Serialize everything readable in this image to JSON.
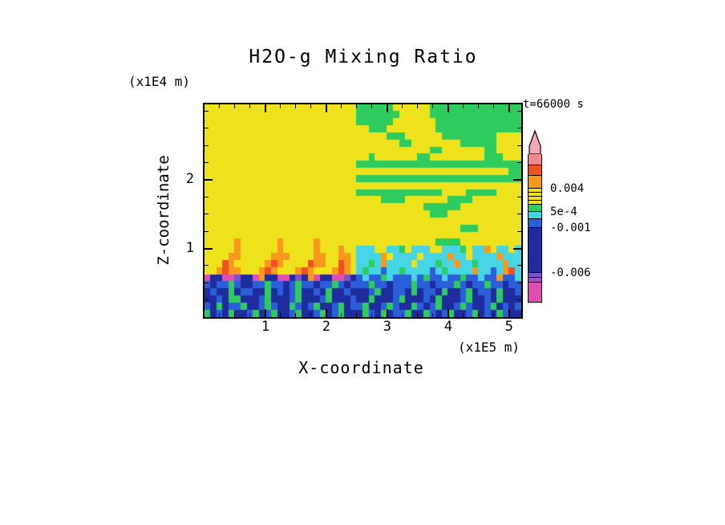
{
  "figure": {
    "title": "H2O-g Mixing Ratio",
    "time_label": "t=66000 s"
  },
  "axes": {
    "x": {
      "label": "X-coordinate",
      "unit": "(x1E5 m)",
      "min": 0,
      "max": 5.2,
      "major_ticks": [
        1,
        2,
        3,
        4,
        5
      ],
      "minor_step": 0.25
    },
    "z": {
      "label": "Z-coordinate",
      "unit": "(x1E4 m)",
      "min": 0,
      "max": 3.1,
      "major_ticks": [
        1,
        2
      ],
      "minor_step": 0.25
    }
  },
  "chart_data": {
    "type": "heatmap",
    "title": "H2O-g Mixing Ratio",
    "time_annotation": "t=66000 s",
    "x_axis": {
      "label": "X-coordinate",
      "units": "x1E5 m",
      "range": [
        0,
        5.2
      ],
      "ticks": [
        1,
        2,
        3,
        4,
        5
      ]
    },
    "z_axis": {
      "label": "Z-coordinate",
      "units": "x1E4 m",
      "range": [
        0,
        3.1
      ],
      "ticks": [
        1,
        2
      ]
    },
    "legend_position": "right",
    "grid_on": false,
    "field_description": "Water vapor mixing ratio anomaly: uniform yellow layer aloft on left, green turbulent patches upper right, cyan band mid-right, orange convective plumes rising from a dark navy/magenta inversion layer, blue/navy mixed boundary layer below",
    "palette": {
      "y": "#EDE21B",
      "g": "#2ECC5E",
      "c": "#45D5E5",
      "b": "#2B5FD9",
      "n": "#1F2C9E",
      "o": "#F8991D",
      "r": "#EF5123",
      "m": "#E04FAE",
      "p": "#7B52C7"
    },
    "grid": {
      "cols": 52,
      "rows": 30,
      "cells": [
        "yyyyyyyyyyyyyyyyyyyyyyyyyggggggyyyyyyggggggggggggggg",
        "yyyyyyyyyyyyyyyyyyyyyyyyygggggggyyyyyggggggggggggggg",
        "yyyyyyyyyyyyyyyyyyyyyyyyyggggggyyyyyyygggggggggggggg",
        "yyyyyyyyyyyyyyyyyyyyyyyyyyygggyyyyyyyygggggggggggggg",
        "yyyyyyyyyyyyyyyyyyyyyyyyyyyyyygggyyyyyygggggggggyyyy",
        "yyyyyyyyyyyyyyyyyyyyyyyyyyyyyyyyggyyyyyyyyggggggyyyy",
        "yyyyyyyyyyyyyyyyyyyyyyyyyyyyyyyyyyyyyggyyyyyyyggyyyy",
        "yyyyyyyyyyyyyyyyyyyyyyyyyyygyyyyyyyggyyyyyyyyygggyyy",
        "yyyyyyyyyyyyyyyyyyyyyyyyyggggggggggggggggggggggggggg",
        "yyyyyyyyyyyyyyyyyyyyyyyyyyyyyyyyyyyyyyyyyyyyyyyyyygg",
        "yyyyyyyyyyyyyyyyyyyyyyyyyggggggggggggggggggggggggggg",
        "yyyyyyyyyyyyyyyyyyyyyyyyyyyyyyyyyyyyyyyyyyyyyyyyyyyy",
        "yyyyyyyyyyyyyyyyyyyyyyyyyggggggggggggggyyyygggggyyyy",
        "yyyyyyyyyyyyyyyyyyyyyyyyyyyyyggggyyyyyyyggggyyyyyyyy",
        "yyyyyyyyyyyyyyyyyyyyyyyyyyyyyyyyyyyyggggggyyyyyyyyyy",
        "yyyyyyyyyyyyyyyyyyyyyyyyyyyyyyyyyyyyygggyyyyyyyyyyyy",
        "yyyyyyyyyyyyyyyyyyyyyyyyyyyyyyyyyyyyyyyyyyyyyyyyyyyy",
        "yyyyyyyyyyyyyyyyyyyyyyyyyyyyyyyyyyyyyyyyyygggyyyyyyy",
        "yyyyyyyyyyyyyyyyyyyyyyyyyyyyyyyyyyyyyyyyyyyyyyyyyyyy",
        "yyyyyoyyyyyyoyyyyyoyyyyyyyyyyyyyyyyyyyggggyyyyyyyyyy",
        "yyyyyoyyyyyyoyyyyyoyyyoyycccyyccgycccyycccgyccoyccyc",
        "yyyyooyyyyyoooyyyyooyyooyccccoyccccyccccoccyccccoccc",
        "yyyroyyyyyoroyyyyrooyyroyccgcoccccycccgccoccgccccocc",
        "yyorooyyyoroyyyoroyyyoroycgccbccgccccbcgccccoccbcorc",
        "mnnmmpnnmonnmmnpnomnnmmpnbcbbgcbbbcbgbbcbbgbbcbbobbc",
        "bnbbgbnnbbgbbnbgbbnbbgbnbbbgbbnbbbgbbnbbbgbnbbgbbnbb",
        "nbnngnbbnngnbnbgnnbngnnbnnnbgnnbbngnbbngnnbgnbbngnnb",
        "nnbnggnnnbgnnnbgnnnbgnnnbnngnnnbgnnnbngnnnbgnnbngnnn",
        "bngnbbgnnbgbnngbnbgnnbgnbbgnnbgbnngbnbgnnbgbnnbgnbnb",
        "gnbngnnbgnbgnnbgnnbgnbgnnngbngnbbgnngbnbgnnbgnbngbnn"
      ]
    },
    "colorbar": {
      "arrow_color": "#F2A9B6",
      "outline": "#000000",
      "segments": [
        {
          "color": "#F08A8A",
          "height": 14
        },
        {
          "color": "#EF5123",
          "height": 13
        },
        {
          "color": "#F8991D",
          "height": 16
        },
        {
          "color": "#EDE21B",
          "height": 5
        },
        {
          "color": "#EDE21B",
          "height": 5
        },
        {
          "color": "#EDE21B",
          "height": 5
        },
        {
          "color": "#EDE21B",
          "height": 5
        },
        {
          "color": "#2ECC5E",
          "height": 9
        },
        {
          "color": "#45D5E5",
          "height": 9
        },
        {
          "color": "#2B5FD9",
          "height": 11
        },
        {
          "color": "#1F2C9E",
          "height": 56
        },
        {
          "color": "#7B52C7",
          "height": 6
        },
        {
          "color": "#A14FC7",
          "height": 6
        },
        {
          "color": "#E04FAE",
          "height": 24
        }
      ],
      "labels": [
        {
          "text": "0.004",
          "offset": 43
        },
        {
          "text": "5e-4",
          "offset": 72
        },
        {
          "text": "-0.001",
          "offset": 92
        },
        {
          "text": "-0.006",
          "offset": 148
        }
      ]
    }
  }
}
